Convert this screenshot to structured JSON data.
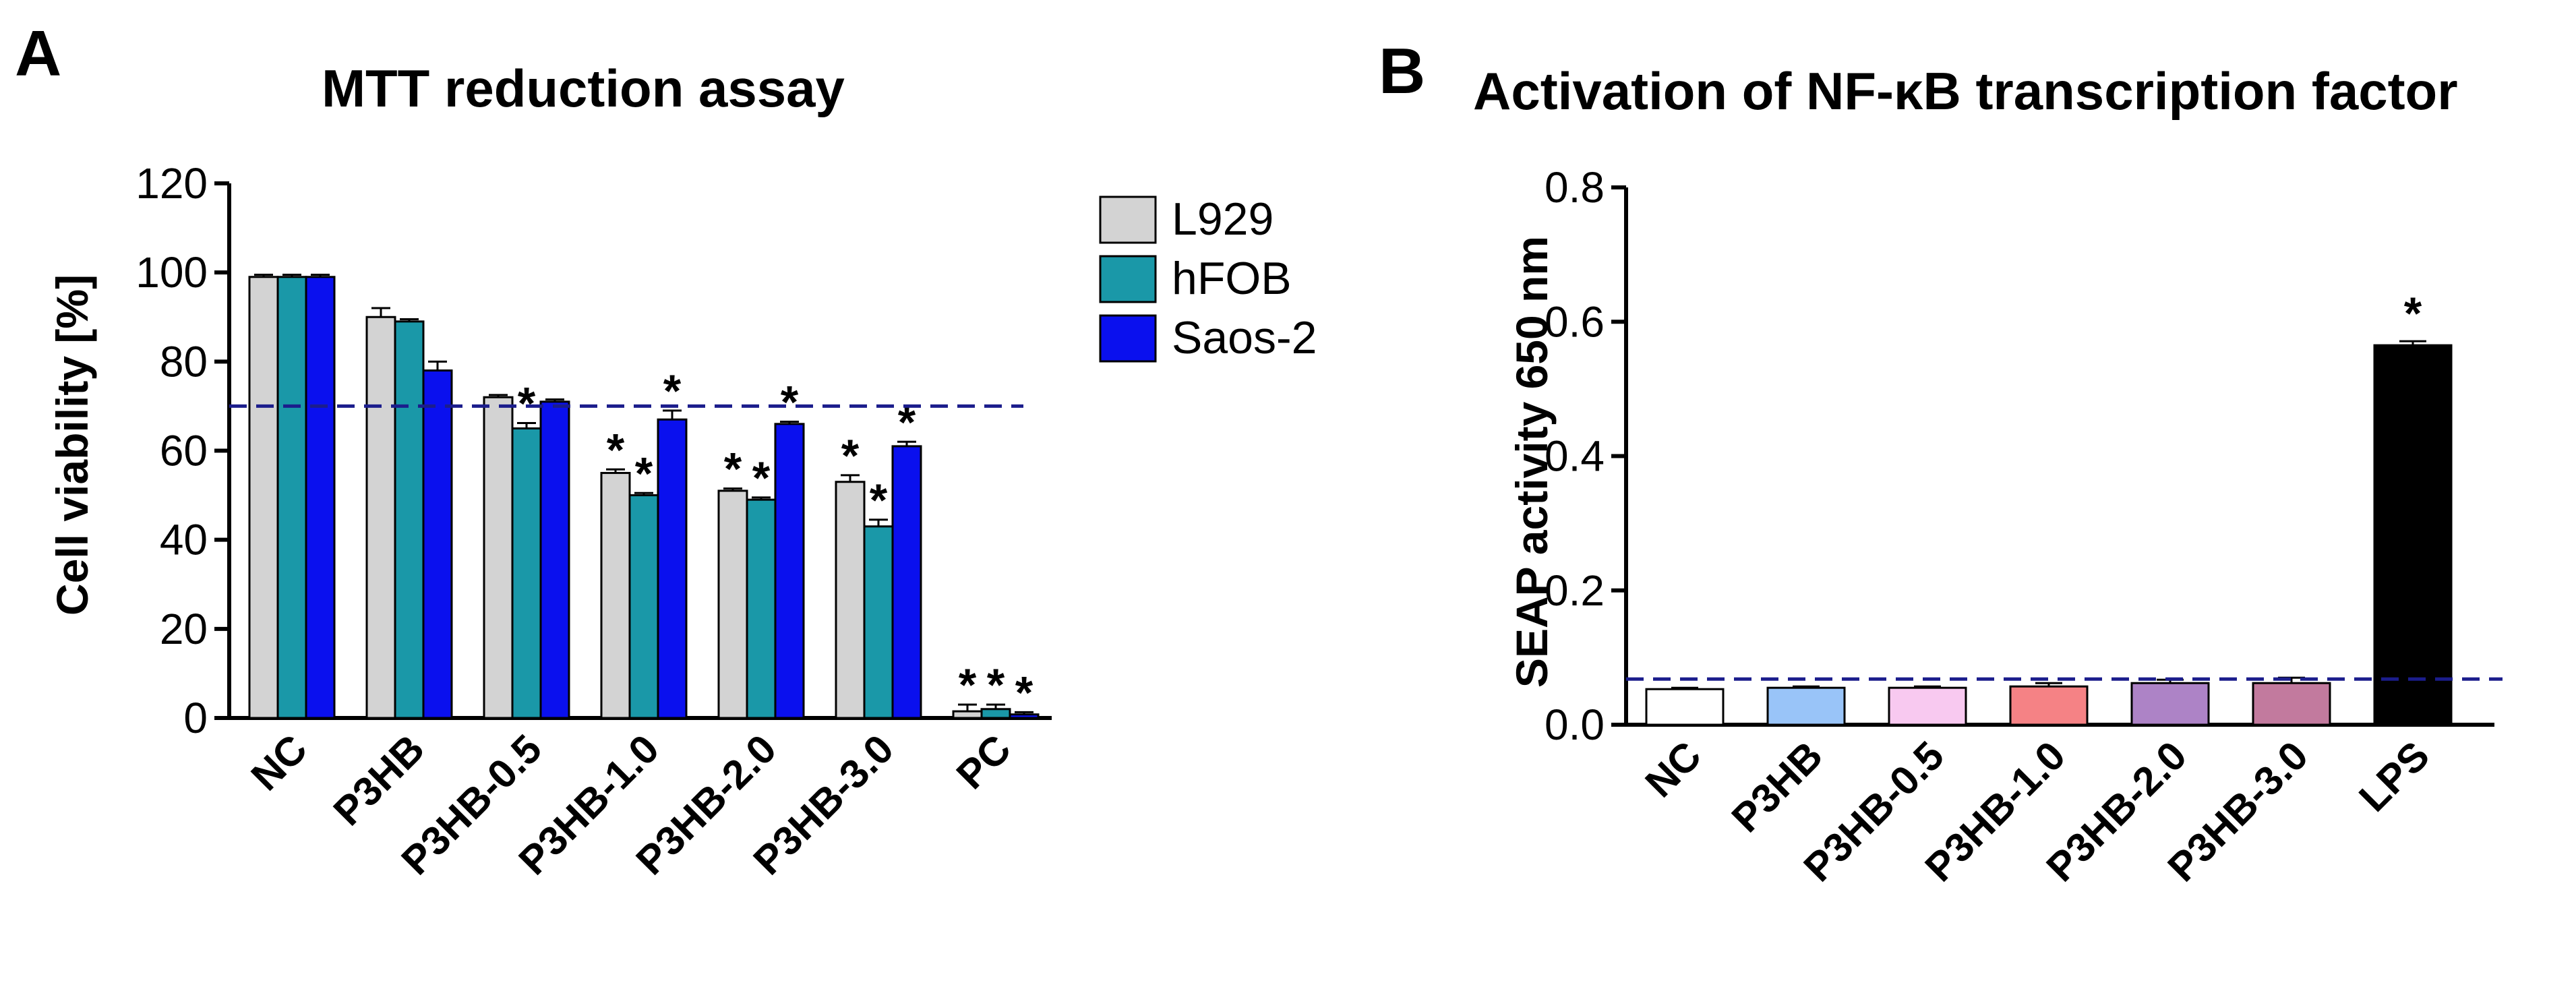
{
  "chart_data": [
    {
      "panel": "A",
      "type": "bar",
      "title": "MTT reduction assay",
      "ylabel": "Cell viability [%]",
      "xlabel": "",
      "ylim": [
        0,
        120
      ],
      "yticks": [
        "0",
        "20",
        "40",
        "60",
        "80",
        "100",
        "120"
      ],
      "categories": [
        "NC",
        "P3HB",
        "P3HB-0.5",
        "P3HB-1.0",
        "P3HB-2.0",
        "P3HB-3.0",
        "PC"
      ],
      "reference_line": 70,
      "legend_position": "top-right",
      "series": [
        {
          "name": "L929",
          "color": "#d3d3d3",
          "values": [
            99,
            90,
            72,
            55,
            51,
            53,
            1.5
          ],
          "errors": [
            0.5,
            2,
            0.5,
            0.8,
            0.5,
            1.5,
            1.5
          ],
          "stars": [
            "",
            "",
            "",
            "*",
            "*",
            "*",
            "*"
          ]
        },
        {
          "name": "hFOB",
          "color": "#1a98a8",
          "values": [
            99,
            89,
            65,
            50,
            49,
            43,
            2
          ],
          "errors": [
            0.5,
            0.5,
            1.2,
            0.5,
            0.5,
            1.5,
            1
          ],
          "stars": [
            "",
            "",
            "*",
            "*",
            "*",
            "*",
            "*"
          ]
        },
        {
          "name": "Saos-2",
          "color": "#0a10ee",
          "values": [
            99,
            78,
            71,
            67,
            66,
            61,
            0.8
          ],
          "errors": [
            0.5,
            2,
            0.5,
            2,
            0.5,
            1,
            0.5
          ],
          "stars": [
            "",
            "",
            "",
            "*",
            "*",
            "*",
            "*"
          ]
        }
      ]
    },
    {
      "panel": "B",
      "type": "bar",
      "title": "Activation  of NF-κB transcription factor",
      "ylabel": "SEAP activity  650 nm",
      "xlabel": "",
      "ylim": [
        0,
        0.8
      ],
      "yticks": [
        "0.0",
        "0.2",
        "0.4",
        "0.6",
        "0.8"
      ],
      "categories": [
        "NC",
        "P3HB",
        "P3HB-0.5",
        "P3HB-1.0",
        "P3HB-2.0",
        "P3HB-3.0",
        "LPS"
      ],
      "reference_line": 0.068,
      "values": [
        0.053,
        0.055,
        0.055,
        0.057,
        0.062,
        0.062,
        0.565
      ],
      "errors": [
        0.002,
        0.002,
        0.002,
        0.005,
        0.005,
        0.008,
        0.006
      ],
      "colors": [
        "#ffffff",
        "#99c4f8",
        "#f8c9f0",
        "#f58285",
        "#ad83c6",
        "#c27a9e",
        "#000000"
      ],
      "stars": [
        "",
        "",
        "",
        "",
        "",
        "",
        "*"
      ]
    }
  ]
}
